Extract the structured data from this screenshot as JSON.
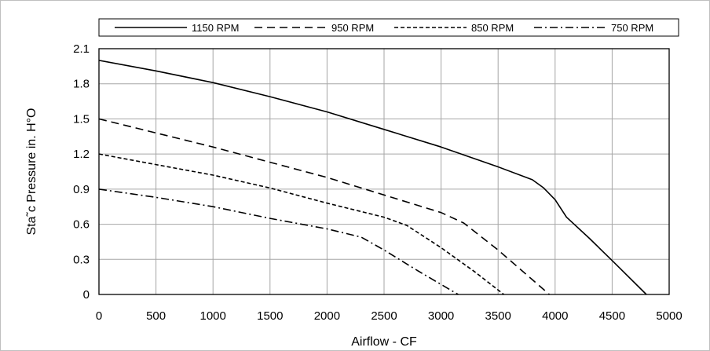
{
  "chart_data": {
    "type": "line",
    "title": "",
    "xlabel": "Airflow - CF",
    "ylabel": "Sta˜c Pressure in. H°O",
    "xlim": [
      0,
      5000
    ],
    "ylim": [
      0,
      2.1
    ],
    "xticks": [
      0,
      500,
      1000,
      1500,
      2000,
      2500,
      3000,
      3500,
      4000,
      4500,
      5000
    ],
    "yticks": [
      0,
      0.3,
      0.6,
      0.9,
      1.2,
      1.5,
      1.8,
      2.1
    ],
    "ytick_labels": [
      "0",
      "0.3",
      "0.6",
      "0.9",
      "1.2",
      "1.5",
      "1.8",
      "2.1"
    ],
    "grid": true,
    "legend_position": "top",
    "series": [
      {
        "name": "1150 RPM",
        "style": "solid",
        "x": [
          0,
          500,
          1000,
          1500,
          2000,
          2500,
          3000,
          3500,
          3800,
          3900,
          4000,
          4100,
          4300,
          4500,
          4800
        ],
        "y": [
          2.0,
          1.91,
          1.81,
          1.69,
          1.56,
          1.41,
          1.26,
          1.09,
          0.98,
          0.91,
          0.81,
          0.66,
          0.48,
          0.29,
          0.0
        ]
      },
      {
        "name": "950 RPM",
        "style": "dash",
        "x": [
          0,
          500,
          1000,
          1500,
          2000,
          2500,
          3000,
          3200,
          3500,
          3950
        ],
        "y": [
          1.5,
          1.38,
          1.26,
          1.13,
          1.0,
          0.85,
          0.7,
          0.61,
          0.38,
          0.0
        ]
      },
      {
        "name": "850 RPM",
        "style": "shortdash",
        "x": [
          0,
          500,
          1000,
          1500,
          2000,
          2500,
          2700,
          3000,
          3300,
          3550
        ],
        "y": [
          1.2,
          1.11,
          1.02,
          0.91,
          0.78,
          0.66,
          0.59,
          0.4,
          0.19,
          0.0
        ]
      },
      {
        "name": "750 RPM",
        "style": "dashdot",
        "x": [
          0,
          500,
          1000,
          1500,
          2000,
          2300,
          2500,
          2800,
          3150
        ],
        "y": [
          0.9,
          0.83,
          0.75,
          0.65,
          0.56,
          0.49,
          0.38,
          0.2,
          0.0
        ]
      }
    ]
  }
}
